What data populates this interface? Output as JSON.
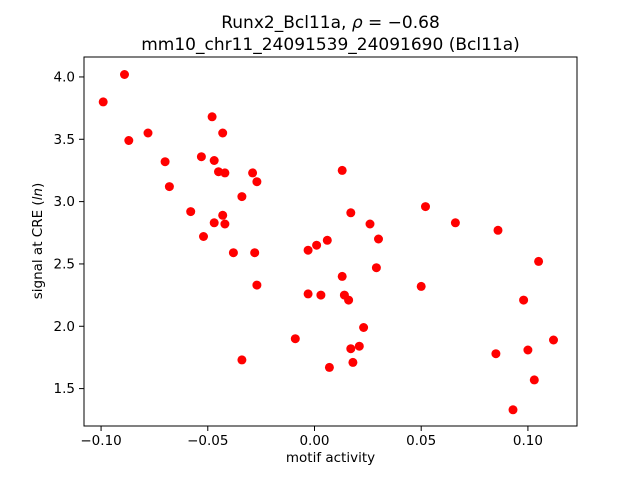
{
  "figure": {
    "title_part1": "Runx2_Bcl11a, ",
    "title_rho": "ρ",
    "title_part2": " = −0.68",
    "subtitle": "mm10_chr11_24091539_24091690 (Bcl11a)",
    "xlabel": "motif activity",
    "ylabel_part1": "signal at CRE (",
    "ylabel_italic": "ln",
    "ylabel_part2": ")"
  },
  "chart_data": {
    "type": "scatter",
    "title": "Runx2_Bcl11a, ρ = −0.68",
    "subtitle": "mm10_chr11_24091539_24091690 (Bcl11a)",
    "xlabel": "motif activity",
    "ylabel": "signal at CRE (ln)",
    "correlation_rho": -0.68,
    "xlim": [
      -0.108,
      0.123
    ],
    "ylim": [
      1.2,
      4.16
    ],
    "xticks": [
      -0.1,
      -0.05,
      0.0,
      0.05,
      0.1
    ],
    "xtick_labels": [
      "−0.10",
      "−0.05",
      "0.00",
      "0.05",
      "0.10"
    ],
    "yticks": [
      1.5,
      2.0,
      2.5,
      3.0,
      3.5,
      4.0
    ],
    "ytick_labels": [
      "1.5",
      "2.0",
      "2.5",
      "3.0",
      "3.5",
      "4.0"
    ],
    "grid": false,
    "legend": false,
    "marker_color": "#ff0000",
    "marker_radius": 4.5,
    "points": [
      [
        -0.099,
        3.8
      ],
      [
        -0.089,
        4.02
      ],
      [
        -0.087,
        3.49
      ],
      [
        -0.078,
        3.55
      ],
      [
        -0.07,
        3.32
      ],
      [
        -0.068,
        3.12
      ],
      [
        -0.058,
        2.92
      ],
      [
        -0.053,
        3.36
      ],
      [
        -0.052,
        2.72
      ],
      [
        -0.048,
        3.68
      ],
      [
        -0.047,
        3.33
      ],
      [
        -0.047,
        2.83
      ],
      [
        -0.045,
        3.24
      ],
      [
        -0.043,
        3.55
      ],
      [
        -0.043,
        2.89
      ],
      [
        -0.042,
        3.23
      ],
      [
        -0.042,
        2.82
      ],
      [
        -0.038,
        2.59
      ],
      [
        -0.034,
        3.04
      ],
      [
        -0.034,
        1.73
      ],
      [
        -0.029,
        3.23
      ],
      [
        -0.028,
        2.59
      ],
      [
        -0.027,
        3.16
      ],
      [
        -0.027,
        2.33
      ],
      [
        -0.009,
        1.9
      ],
      [
        -0.003,
        2.61
      ],
      [
        -0.003,
        2.26
      ],
      [
        0.001,
        2.65
      ],
      [
        0.003,
        2.25
      ],
      [
        0.006,
        2.69
      ],
      [
        0.007,
        1.67
      ],
      [
        0.013,
        3.25
      ],
      [
        0.013,
        2.4
      ],
      [
        0.014,
        2.25
      ],
      [
        0.016,
        2.21
      ],
      [
        0.017,
        2.91
      ],
      [
        0.017,
        1.82
      ],
      [
        0.018,
        1.71
      ],
      [
        0.021,
        1.84
      ],
      [
        0.023,
        1.99
      ],
      [
        0.026,
        2.82
      ],
      [
        0.029,
        2.47
      ],
      [
        0.03,
        2.7
      ],
      [
        0.05,
        2.32
      ],
      [
        0.052,
        2.96
      ],
      [
        0.066,
        2.83
      ],
      [
        0.085,
        1.78
      ],
      [
        0.086,
        2.77
      ],
      [
        0.093,
        1.33
      ],
      [
        0.098,
        2.21
      ],
      [
        0.1,
        1.81
      ],
      [
        0.103,
        1.57
      ],
      [
        0.105,
        2.52
      ],
      [
        0.112,
        1.89
      ]
    ]
  }
}
